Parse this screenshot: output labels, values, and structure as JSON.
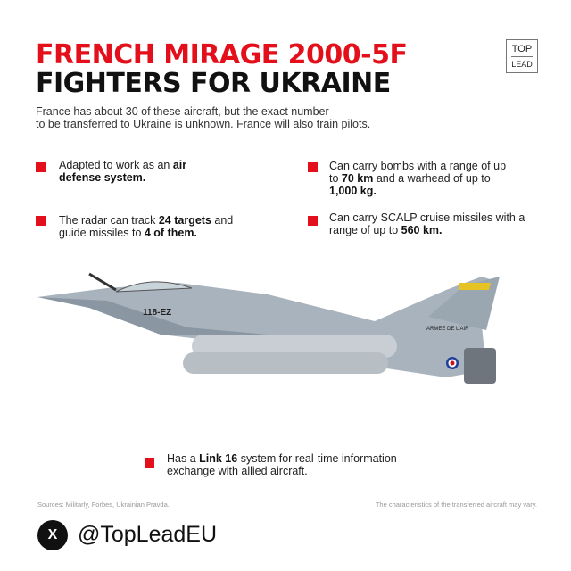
{
  "title": {
    "line1": "FRENCH MIRAGE 2000-5F",
    "line2": "FIGHTERS FOR UKRAINE"
  },
  "brand": {
    "top": "TOP",
    "bottom": "LEAD"
  },
  "subtitle": {
    "line1": "France has about 30 of these aircraft, but the exact number",
    "line2": "to be transferred to Ukraine is unknown. France will also train pilots."
  },
  "bullets": [
    {
      "pre": "Adapted to work as an ",
      "bold": "air defense system.",
      "mid": "",
      "bold2": "",
      "post": ""
    },
    {
      "pre": "Can carry bombs with a range of up to ",
      "bold": "70 km",
      "mid": " and a warhead of up to ",
      "bold2": "1,000 kg.",
      "post": ""
    },
    {
      "pre": "The radar can track ",
      "bold": "24 targets",
      "mid": " and guide missiles to ",
      "bold2": "4 of them.",
      "post": ""
    },
    {
      "pre": "Can carry SCALP cruise missiles with a range of up to ",
      "bold": "560 km.",
      "mid": "",
      "bold2": "",
      "post": ""
    },
    {
      "pre": "Has a ",
      "bold": "Link 16",
      "mid": " system for real-time information exchange with allied aircraft.",
      "bold2": "",
      "post": ""
    }
  ],
  "aircraft_markings": {
    "code": "118-EZ",
    "tail": "ARMEE DE L'AIR"
  },
  "footer": {
    "sources": "Sources: Militarly, Forbes, Ukrainian Pravda.",
    "note": "The characteristics of the transferred aircraft may vary.",
    "handle": "@TopLeadEU",
    "x_icon": "X"
  },
  "colors": {
    "accent": "#e3101b"
  }
}
